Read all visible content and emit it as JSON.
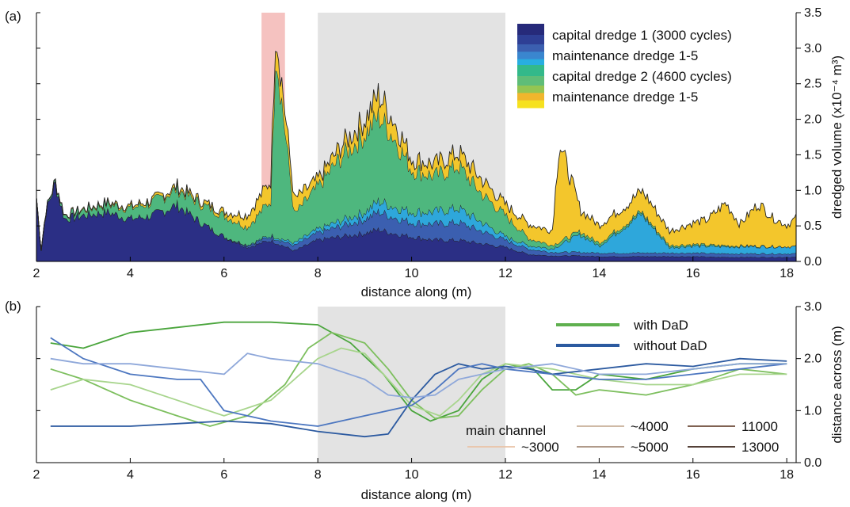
{
  "panels": {
    "a": {
      "label": "(a)"
    },
    "b": {
      "label": "(b)"
    }
  },
  "colors": {
    "shade": "#e3e3e3",
    "highlight": "#f5c2c0",
    "outline": "#222222",
    "with_dad": "#5fb04f",
    "without_dad": "#2c5aa0"
  },
  "chart_data": [
    {
      "type": "area",
      "panel": "(a)",
      "xlabel": "distance along (m)",
      "ylabel": "dredged volume (x10⁻⁴ m³)",
      "xlim": [
        2,
        18.2
      ],
      "ylim": [
        0,
        3.5
      ],
      "xticks": [
        "2",
        "4",
        "6",
        "8",
        "10",
        "12",
        "14",
        "16",
        "18"
      ],
      "yticks": [
        "0.0",
        "0.5",
        "1.0",
        "1.5",
        "2.0",
        "2.5",
        "3.0",
        "3.5"
      ],
      "shaded_region": [
        8,
        12
      ],
      "highlight_region": [
        6.8,
        7.3
      ],
      "legend": [
        {
          "label": "capital dredge 1 (3000 cycles)",
          "colors": [
            "#262a7a",
            "#2e3f95"
          ]
        },
        {
          "label": "maintenance dredge 1-5",
          "colors": [
            "#3b5fb0",
            "#3a86cf",
            "#28aee0"
          ]
        },
        {
          "label": "capital dredge 2 (4600 cycles)",
          "colors": [
            "#33b98a",
            "#5fbd78"
          ]
        },
        {
          "label": "maintenance dredge 1-5",
          "colors": [
            "#94c552",
            "#f0b62d",
            "#f6e11f"
          ]
        }
      ],
      "series": [
        {
          "layer": "capital dredge 1",
          "color": "#2b2f85",
          "x": [
            2.0,
            2.1,
            2.2,
            2.4,
            2.6,
            3.0,
            3.5,
            4.0,
            4.5,
            5.0,
            5.5,
            6.0,
            6.5,
            7.0,
            7.5,
            8.0,
            8.5,
            9.0,
            9.3,
            9.6,
            10.0,
            10.5,
            11.0,
            11.5,
            12.0,
            12.5,
            13.0,
            13.5,
            14.0,
            14.5,
            15.0,
            15.5,
            16.0,
            16.5,
            17.0,
            17.5,
            18.0,
            18.2
          ],
          "values": [
            0.9,
            0.15,
            0.7,
            1.1,
            0.6,
            0.65,
            0.7,
            0.6,
            0.65,
            0.8,
            0.55,
            0.35,
            0.2,
            0.3,
            0.15,
            0.3,
            0.35,
            0.4,
            0.45,
            0.4,
            0.35,
            0.3,
            0.3,
            0.25,
            0.2,
            0.1,
            0.08,
            0.08,
            0.07,
            0.07,
            0.07,
            0.07,
            0.07,
            0.06,
            0.06,
            0.06,
            0.06,
            0.06
          ]
        },
        {
          "layer": "maintenance dredge (1)",
          "color": "#3b5fb0",
          "x": [
            2.0,
            6.0,
            7.0,
            8.0,
            9.0,
            9.3,
            10.0,
            11.0,
            12.0,
            13.0,
            14.0,
            15.0,
            16.0,
            17.0,
            18.0,
            18.2
          ],
          "values": [
            0.0,
            0.0,
            0.05,
            0.1,
            0.2,
            0.25,
            0.2,
            0.25,
            0.1,
            0.05,
            0.05,
            0.05,
            0.05,
            0.05,
            0.05,
            0.05
          ]
        },
        {
          "layer": "maintenance dredge (2)",
          "color": "#2ea7db",
          "x": [
            2.0,
            6.0,
            7.0,
            8.0,
            9.0,
            9.3,
            10.0,
            11.0,
            12.0,
            13.0,
            13.6,
            14.0,
            14.9,
            15.5,
            16.0,
            17.0,
            18.0,
            18.2
          ],
          "values": [
            0.0,
            0.0,
            0.02,
            0.05,
            0.1,
            0.15,
            0.15,
            0.2,
            0.05,
            0.05,
            0.25,
            0.1,
            0.55,
            0.08,
            0.1,
            0.1,
            0.1,
            0.1
          ]
        },
        {
          "layer": "capital dredge 2",
          "color": "#4eb77e",
          "x": [
            2.0,
            6.0,
            6.5,
            7.0,
            7.1,
            7.5,
            8.0,
            8.5,
            9.0,
            9.3,
            9.6,
            10.0,
            10.5,
            11.0,
            11.5,
            12.0,
            12.5,
            13.0,
            18.2
          ],
          "values": [
            0.0,
            0.3,
            0.25,
            0.5,
            2.7,
            0.4,
            0.6,
            0.9,
            1.1,
            1.2,
            1.0,
            0.6,
            0.5,
            0.6,
            0.4,
            0.3,
            0.1,
            0.05,
            0.0
          ]
        },
        {
          "layer": "maintenance dredge (3)",
          "color": "#f3c62c",
          "x": [
            2.0,
            6.0,
            7.1,
            8.0,
            9.0,
            9.3,
            10.0,
            11.5,
            12.0,
            12.5,
            13.0,
            13.15,
            13.6,
            14.0,
            14.6,
            15.0,
            15.5,
            16.0,
            16.3,
            16.7,
            17.0,
            17.4,
            17.7,
            18.0,
            18.2
          ],
          "values": [
            0.0,
            0.05,
            0.3,
            0.1,
            0.2,
            0.3,
            0.15,
            0.2,
            0.15,
            0.2,
            0.2,
            1.4,
            0.3,
            0.25,
            0.25,
            0.3,
            0.2,
            0.3,
            0.35,
            0.6,
            0.3,
            0.6,
            0.4,
            0.3,
            0.4
          ]
        }
      ]
    },
    {
      "type": "line",
      "panel": "(b)",
      "xlabel": "distance along (m)",
      "ylabel": "distance across (m)",
      "xlim": [
        2,
        18.2
      ],
      "ylim": [
        0,
        3
      ],
      "xticks": [
        "2",
        "4",
        "6",
        "8",
        "10",
        "12",
        "14",
        "16",
        "18"
      ],
      "yticks": [
        "0.0",
        "1.0",
        "2.0",
        "3.0"
      ],
      "shaded_region": [
        8,
        12
      ],
      "legend": [
        {
          "label": "with DaD",
          "color": "#5fb04f"
        },
        {
          "label": "without DaD",
          "color": "#2c5aa0"
        }
      ],
      "legend2_title": "main channel",
      "legend2": [
        {
          "label": "~3000",
          "color": "#eac3a6"
        },
        {
          "label": "~4000",
          "color": "#c8b19a"
        },
        {
          "label": "~5000",
          "color": "#a58c79"
        },
        {
          "label": "11000",
          "color": "#6e4b39"
        },
        {
          "label": "13000",
          "color": "#3b261c"
        }
      ],
      "series": [
        {
          "group": "with DaD",
          "color": "#4aa53c",
          "x": [
            2.3,
            3.0,
            4.0,
            5.0,
            6.0,
            7.0,
            8.0,
            8.7,
            9.4,
            10.0,
            10.4,
            11.0,
            11.5,
            12.0,
            12.6,
            13.0,
            13.5,
            14.0,
            15.0,
            16.0,
            17.0,
            18.0
          ],
          "values": [
            2.3,
            2.2,
            2.5,
            2.6,
            2.7,
            2.7,
            2.65,
            2.3,
            1.7,
            1.0,
            0.8,
            1.0,
            1.6,
            1.9,
            1.8,
            1.4,
            1.4,
            1.7,
            1.6,
            1.8,
            1.9,
            1.9
          ]
        },
        {
          "group": "with DaD",
          "color": "#7dbf5e",
          "x": [
            2.3,
            3.0,
            4.0,
            5.0,
            5.7,
            6.5,
            7.3,
            7.8,
            8.3,
            9.0,
            9.5,
            10.0,
            10.5,
            11.0,
            11.5,
            12.0,
            12.5,
            13.0,
            13.5,
            14.0,
            15.0,
            16.0,
            17.0,
            18.0
          ],
          "values": [
            1.8,
            1.6,
            1.2,
            0.9,
            0.7,
            0.9,
            1.5,
            2.2,
            2.5,
            2.3,
            1.8,
            1.2,
            0.85,
            0.9,
            1.4,
            1.8,
            1.9,
            1.7,
            1.3,
            1.4,
            1.3,
            1.5,
            1.8,
            1.7
          ]
        },
        {
          "group": "with DaD",
          "color": "#a8d58d",
          "x": [
            2.3,
            3.0,
            4.0,
            5.0,
            6.0,
            7.0,
            8.0,
            8.5,
            9.0,
            9.5,
            10.0,
            10.6,
            11.0,
            11.5,
            12.0,
            13.0,
            14.0,
            15.0,
            16.0,
            17.0,
            18.0
          ],
          "values": [
            1.4,
            1.6,
            1.5,
            1.2,
            0.9,
            1.2,
            2.0,
            2.2,
            2.1,
            1.6,
            1.1,
            0.9,
            1.2,
            1.7,
            1.9,
            1.8,
            1.6,
            1.5,
            1.5,
            1.7,
            1.7
          ]
        },
        {
          "group": "without DaD",
          "color": "#2c5aa0",
          "x": [
            2.3,
            3.0,
            4.0,
            5.0,
            6.0,
            7.0,
            8.0,
            9.0,
            9.5,
            10.0,
            10.5,
            11.0,
            11.5,
            12.0,
            12.5,
            13.0,
            14.0,
            15.0,
            16.0,
            17.0,
            18.0
          ],
          "values": [
            0.7,
            0.7,
            0.7,
            0.75,
            0.8,
            0.75,
            0.6,
            0.5,
            0.55,
            1.2,
            1.7,
            1.9,
            1.8,
            1.85,
            1.8,
            1.7,
            1.8,
            1.9,
            1.85,
            2.0,
            1.95
          ]
        },
        {
          "group": "without DaD",
          "color": "#4d77c0",
          "x": [
            2.3,
            3.0,
            4.0,
            5.0,
            5.5,
            6.0,
            7.0,
            8.0,
            9.0,
            10.0,
            10.5,
            11.0,
            11.5,
            12.0,
            13.0,
            14.0,
            15.0,
            16.0,
            17.0,
            18.0
          ],
          "values": [
            2.4,
            2.0,
            1.7,
            1.6,
            1.6,
            1.0,
            0.8,
            0.7,
            0.9,
            1.1,
            1.4,
            1.8,
            1.9,
            1.8,
            1.7,
            1.6,
            1.6,
            1.7,
            1.8,
            1.9
          ]
        },
        {
          "group": "without DaD",
          "color": "#8fa8da",
          "x": [
            2.3,
            3.0,
            4.0,
            5.0,
            6.0,
            6.5,
            7.0,
            8.0,
            9.0,
            9.5,
            10.0,
            10.5,
            11.0,
            12.0,
            13.0,
            14.0,
            15.0,
            16.0,
            17.0,
            18.0
          ],
          "values": [
            2.0,
            1.9,
            1.9,
            1.8,
            1.7,
            2.1,
            2.0,
            1.9,
            1.6,
            1.3,
            1.25,
            1.3,
            1.6,
            1.8,
            1.9,
            1.7,
            1.7,
            1.8,
            1.9,
            1.9
          ]
        }
      ]
    }
  ]
}
